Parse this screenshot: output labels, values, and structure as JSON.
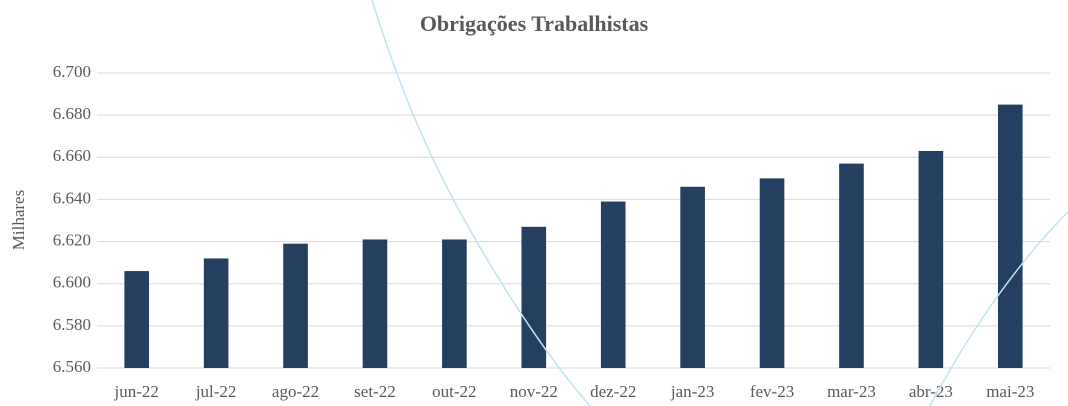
{
  "chart_data": {
    "type": "bar",
    "title": "Obrigações Trabalhistas",
    "y_label": "Milhares",
    "categories": [
      "jun-22",
      "jul-22",
      "ago-22",
      "set-22",
      "out-22",
      "nov-22",
      "dez-22",
      "jan-23",
      "fev-23",
      "mar-23",
      "abr-23",
      "mai-23"
    ],
    "values": [
      6606,
      6612,
      6619,
      6621,
      6621,
      6627,
      6639,
      6646,
      6650,
      6657,
      6663,
      6685
    ],
    "color": "#243f60",
    "ylim": [
      6560,
      6700
    ],
    "yticks": [
      {
        "value": 6560,
        "label": "6.560"
      },
      {
        "value": 6580,
        "label": "6.580"
      },
      {
        "value": 6600,
        "label": "6.600"
      },
      {
        "value": 6620,
        "label": "6.620"
      },
      {
        "value": 6640,
        "label": "6.640"
      },
      {
        "value": 6660,
        "label": "6.660"
      },
      {
        "value": 6680,
        "label": "6.680"
      },
      {
        "value": 6700,
        "label": "6.700"
      }
    ],
    "grid": true
  }
}
